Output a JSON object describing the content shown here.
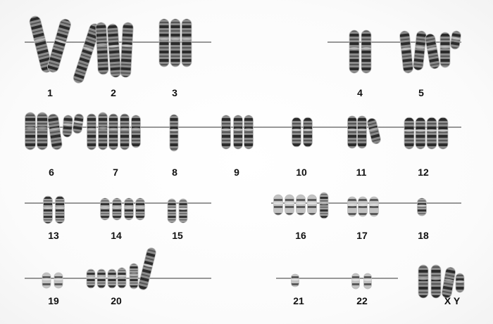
{
  "karyotype": {
    "groups": [
      {
        "label": "1"
      },
      {
        "label": "2"
      },
      {
        "label": "3"
      },
      {
        "label": "4"
      },
      {
        "label": "5"
      },
      {
        "label": "6"
      },
      {
        "label": "7"
      },
      {
        "label": "8"
      },
      {
        "label": "9"
      },
      {
        "label": "10"
      },
      {
        "label": "11"
      },
      {
        "label": "12"
      },
      {
        "label": "13"
      },
      {
        "label": "14"
      },
      {
        "label": "15"
      },
      {
        "label": "16"
      },
      {
        "label": "17"
      },
      {
        "label": "18"
      },
      {
        "label": "19"
      },
      {
        "label": "20"
      },
      {
        "label": "21"
      },
      {
        "label": "22"
      },
      {
        "label": "X Y"
      }
    ]
  }
}
